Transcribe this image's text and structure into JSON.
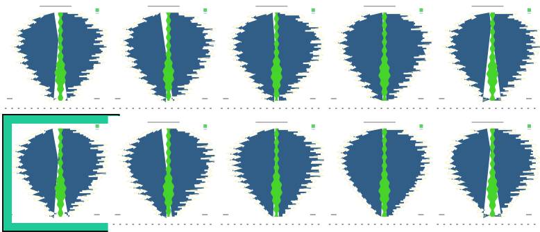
{
  "gallery": {
    "columns": 5,
    "items": 10,
    "selected": 5
  }
}
